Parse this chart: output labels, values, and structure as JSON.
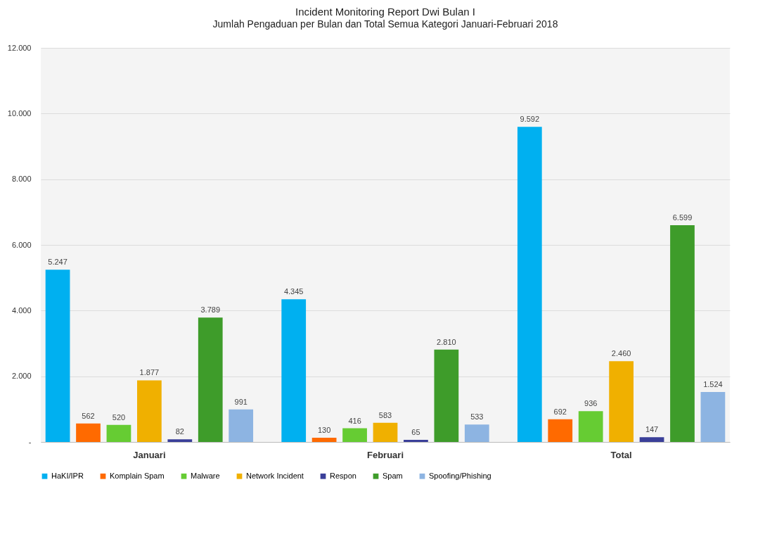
{
  "chart_data": {
    "type": "bar",
    "title": "Incident Monitoring Report Dwi Bulan I",
    "subtitle": "Jumlah Pengaduan per Bulan dan Total Semua Kategori  Januari-Februari 2018",
    "categories": [
      "Januari",
      "Februari",
      "Total"
    ],
    "series": [
      {
        "name": "HaKI/IPR",
        "color": "#00b0f0",
        "values": [
          5247,
          4345,
          9592
        ],
        "value_labels": [
          "5.247",
          "4.345",
          "9.592"
        ]
      },
      {
        "name": "Komplain Spam",
        "color": "#ff6a00",
        "values": [
          562,
          130,
          692
        ],
        "value_labels": [
          "562",
          "130",
          "692"
        ]
      },
      {
        "name": "Malware",
        "color": "#66cc33",
        "values": [
          520,
          416,
          936
        ],
        "value_labels": [
          "520",
          "416",
          "936"
        ]
      },
      {
        "name": "Network Incident",
        "color": "#f0b000",
        "values": [
          1877,
          583,
          2460
        ],
        "value_labels": [
          "1.877",
          "583",
          "2.460"
        ]
      },
      {
        "name": "Respon",
        "color": "#3a3f99",
        "values": [
          82,
          65,
          147
        ],
        "value_labels": [
          "82",
          "65",
          "147"
        ]
      },
      {
        "name": "Spam",
        "color": "#3e9c2a",
        "values": [
          3789,
          2810,
          6599
        ],
        "value_labels": [
          "3.789",
          "2.810",
          "6.599"
        ]
      },
      {
        "name": "Spoofing/Phishing",
        "color": "#8db4e2",
        "values": [
          991,
          533,
          1524
        ],
        "value_labels": [
          "991",
          "533",
          "1.524"
        ]
      }
    ],
    "ylim": [
      0,
      12000
    ],
    "yticks": [
      {
        "value": 0,
        "label": "-"
      },
      {
        "value": 2000,
        "label": "2.000"
      },
      {
        "value": 4000,
        "label": "4.000"
      },
      {
        "value": 6000,
        "label": "6.000"
      },
      {
        "value": 8000,
        "label": "8.000"
      },
      {
        "value": 10000,
        "label": "10.000"
      },
      {
        "value": 12000,
        "label": "12.000"
      }
    ],
    "grid": "y",
    "legend": "bottom"
  }
}
